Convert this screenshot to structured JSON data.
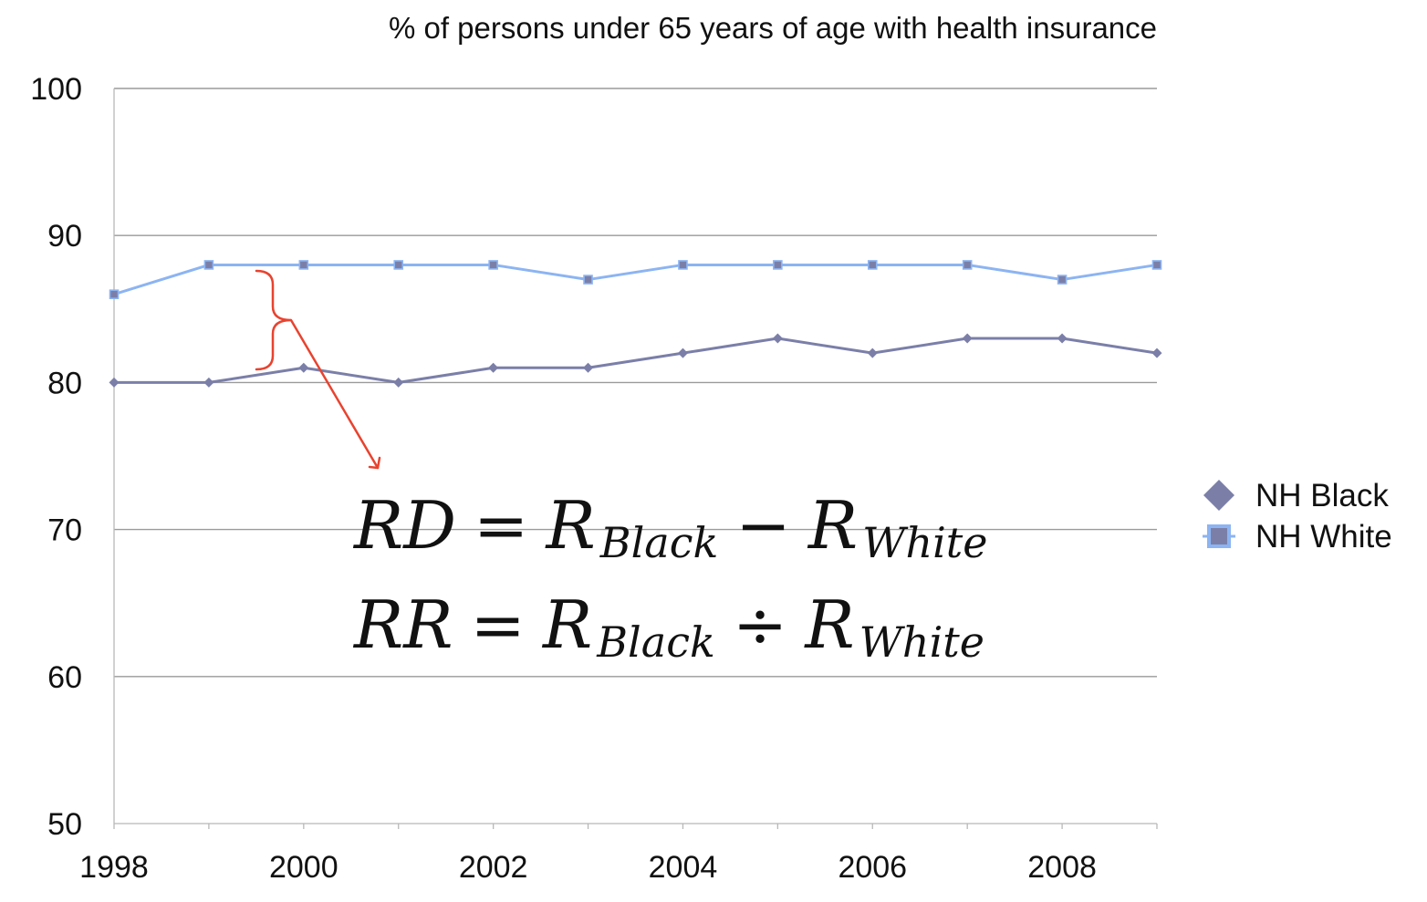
{
  "chart_data": {
    "type": "line",
    "title": "% of persons under 65 years of age with health insurance",
    "xlabel": "",
    "ylabel": "",
    "x": [
      1998,
      1999,
      2000,
      2001,
      2002,
      2003,
      2004,
      2005,
      2006,
      2007,
      2008,
      2009
    ],
    "xlim": [
      1998,
      2009
    ],
    "ylim": [
      50,
      100
    ],
    "x_ticks": [
      "1998",
      "2000",
      "2002",
      "2004",
      "2006",
      "2008"
    ],
    "y_ticks": [
      "50",
      "60",
      "70",
      "80",
      "90",
      "100"
    ],
    "grid": true,
    "legend_position": "right",
    "series": [
      {
        "name": "NH Black",
        "color": "#7b7fa8",
        "marker": "diamond",
        "values": [
          80,
          80,
          81,
          80,
          81,
          81,
          82,
          83,
          82,
          83,
          83,
          82
        ]
      },
      {
        "name": "NH White",
        "color": "#8cb4f2",
        "marker": "square",
        "values": [
          86,
          88,
          88,
          88,
          88,
          87,
          88,
          88,
          88,
          88,
          87,
          88
        ]
      }
    ],
    "annotations": {
      "bracket_color": "#e8432f",
      "formula_rd": {
        "lhs": "RD",
        "eq": "=",
        "r1": "R",
        "sub1": "Black",
        "op": "−",
        "r2": "R",
        "sub2": "White"
      },
      "formula_rr": {
        "lhs": "RR",
        "eq": "=",
        "r1": "R",
        "sub1": "Black",
        "op": "÷",
        "r2": "R",
        "sub2": "White"
      }
    }
  }
}
